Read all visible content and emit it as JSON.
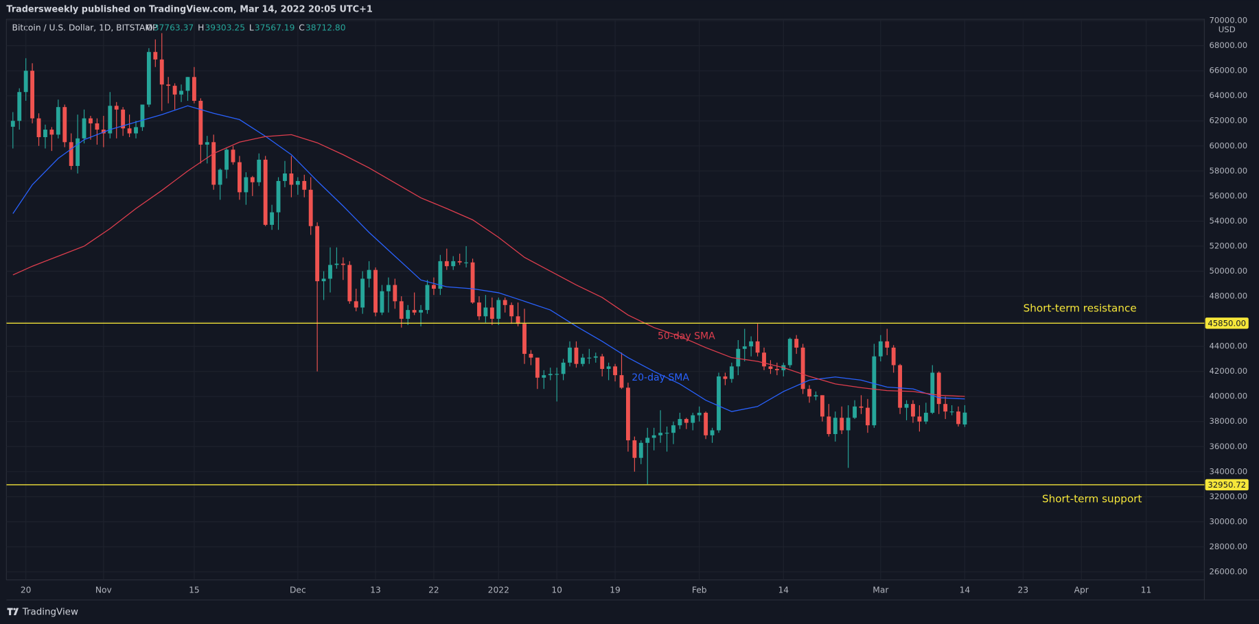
{
  "chart_data": {
    "type": "candlestick",
    "header": "Tradersweekly published on TradingView.com, Mar 14, 2022 20:05 UTC+1",
    "symbol": "Bitcoin / U.S. Dollar, 1D, BITSTAMP",
    "ohlc_legend": [
      {
        "label": "O",
        "value": "37763.37"
      },
      {
        "label": "H",
        "value": "39303.25"
      },
      {
        "label": "L",
        "value": "37567.19"
      },
      {
        "label": "C",
        "value": "38712.80"
      }
    ],
    "currency": "USD",
    "footer": "TradingView",
    "up_color": "#26a69a",
    "down_color": "#ef5350",
    "grid": true,
    "xlim": [
      "2021-10-17",
      "2022-04-20"
    ],
    "ylim": [
      25360,
      70110
    ],
    "xticks": [
      {
        "value": "2021-10-20",
        "label": "20"
      },
      {
        "value": "2021-11-01",
        "label": "Nov"
      },
      {
        "value": "2021-11-15",
        "label": "15"
      },
      {
        "value": "2021-12-01",
        "label": "Dec"
      },
      {
        "value": "2021-12-13",
        "label": "13"
      },
      {
        "value": "2021-12-22",
        "label": "22"
      },
      {
        "value": "2022-01-01",
        "label": "2022"
      },
      {
        "value": "2022-01-10",
        "label": "10"
      },
      {
        "value": "2022-01-19",
        "label": "19"
      },
      {
        "value": "2022-02-01",
        "label": "Feb"
      },
      {
        "value": "2022-02-14",
        "label": "14"
      },
      {
        "value": "2022-03-01",
        "label": "Mar"
      },
      {
        "value": "2022-03-14",
        "label": "14"
      },
      {
        "value": "2022-03-23",
        "label": "23"
      },
      {
        "value": "2022-04-01",
        "label": "Apr"
      },
      {
        "value": "2022-04-11",
        "label": "11"
      }
    ],
    "yticks": [
      {
        "value": 26000,
        "label": "26000.00"
      },
      {
        "value": 28000,
        "label": "28000.00"
      },
      {
        "value": 30000,
        "label": "30000.00"
      },
      {
        "value": 32000,
        "label": "32000.00"
      },
      {
        "value": 34000,
        "label": "34000.00"
      },
      {
        "value": 36000,
        "label": "36000.00"
      },
      {
        "value": 38000,
        "label": "38000.00"
      },
      {
        "value": 40000,
        "label": "40000.00"
      },
      {
        "value": 42000,
        "label": "42000.00"
      },
      {
        "value": 44000,
        "label": "44000.00"
      },
      {
        "value": 46000,
        "label": "46000.00"
      },
      {
        "value": 48000,
        "label": "48000.00"
      },
      {
        "value": 50000,
        "label": "50000.00"
      },
      {
        "value": 52000,
        "label": "52000.00"
      },
      {
        "value": 54000,
        "label": "54000.00"
      },
      {
        "value": 56000,
        "label": "56000.00"
      },
      {
        "value": 58000,
        "label": "58000.00"
      },
      {
        "value": 60000,
        "label": "60000.00"
      },
      {
        "value": 62000,
        "label": "62000.00"
      },
      {
        "value": 64000,
        "label": "64000.00"
      },
      {
        "value": 66000,
        "label": "66000.00"
      },
      {
        "value": 68000,
        "label": "68000.00"
      },
      {
        "value": 70000,
        "label": "70000.00"
      }
    ],
    "levels": [
      {
        "name": "Short-term resistance",
        "value": 45850,
        "label": "45850.00",
        "color": "#f5e63a"
      },
      {
        "name": "Short-term support",
        "value": 32950.72,
        "label": "32950.72",
        "color": "#f5e63a"
      }
    ],
    "x": [
      "2021-10-18",
      "2021-10-19",
      "2021-10-20",
      "2021-10-21",
      "2021-10-22",
      "2021-10-23",
      "2021-10-24",
      "2021-10-25",
      "2021-10-26",
      "2021-10-27",
      "2021-10-28",
      "2021-10-29",
      "2021-10-30",
      "2021-10-31",
      "2021-11-01",
      "2021-11-02",
      "2021-11-03",
      "2021-11-04",
      "2021-11-05",
      "2021-11-06",
      "2021-11-07",
      "2021-11-08",
      "2021-11-09",
      "2021-11-10",
      "2021-11-11",
      "2021-11-12",
      "2021-11-13",
      "2021-11-14",
      "2021-11-15",
      "2021-11-16",
      "2021-11-17",
      "2021-11-18",
      "2021-11-19",
      "2021-11-20",
      "2021-11-21",
      "2021-11-22",
      "2021-11-23",
      "2021-11-24",
      "2021-11-25",
      "2021-11-26",
      "2021-11-27",
      "2021-11-28",
      "2021-11-29",
      "2021-11-30",
      "2021-12-01",
      "2021-12-02",
      "2021-12-03",
      "2021-12-04",
      "2021-12-05",
      "2021-12-06",
      "2021-12-07",
      "2021-12-08",
      "2021-12-09",
      "2021-12-10",
      "2021-12-11",
      "2021-12-12",
      "2021-12-13",
      "2021-12-14",
      "2021-12-15",
      "2021-12-16",
      "2021-12-17",
      "2021-12-18",
      "2021-12-19",
      "2021-12-20",
      "2021-12-21",
      "2021-12-22",
      "2021-12-23",
      "2021-12-24",
      "2021-12-25",
      "2021-12-26",
      "2021-12-27",
      "2021-12-28",
      "2021-12-29",
      "2021-12-30",
      "2021-12-31",
      "2022-01-01",
      "2022-01-02",
      "2022-01-03",
      "2022-01-04",
      "2022-01-05",
      "2022-01-06",
      "2022-01-07",
      "2022-01-08",
      "2022-01-09",
      "2022-01-10",
      "2022-01-11",
      "2022-01-12",
      "2022-01-13",
      "2022-01-14",
      "2022-01-15",
      "2022-01-16",
      "2022-01-17",
      "2022-01-18",
      "2022-01-19",
      "2022-01-20",
      "2022-01-21",
      "2022-01-22",
      "2022-01-23",
      "2022-01-24",
      "2022-01-25",
      "2022-01-26",
      "2022-01-27",
      "2022-01-28",
      "2022-01-29",
      "2022-01-30",
      "2022-01-31",
      "2022-02-01",
      "2022-02-02",
      "2022-02-03",
      "2022-02-04",
      "2022-02-05",
      "2022-02-06",
      "2022-02-07",
      "2022-02-08",
      "2022-02-09",
      "2022-02-10",
      "2022-02-11",
      "2022-02-12",
      "2022-02-13",
      "2022-02-14",
      "2022-02-15",
      "2022-02-16",
      "2022-02-17",
      "2022-02-18",
      "2022-02-19",
      "2022-02-20",
      "2022-02-21",
      "2022-02-22",
      "2022-02-23",
      "2022-02-24",
      "2022-02-25",
      "2022-02-26",
      "2022-02-27",
      "2022-02-28",
      "2022-03-01",
      "2022-03-02",
      "2022-03-03",
      "2022-03-04",
      "2022-03-05",
      "2022-03-06",
      "2022-03-07",
      "2022-03-08",
      "2022-03-09",
      "2022-03-10",
      "2022-03-11",
      "2022-03-12",
      "2022-03-13",
      "2022-03-14"
    ],
    "open": [
      61530,
      62000,
      64300,
      66000,
      62200,
      60700,
      61300,
      60900,
      63100,
      60300,
      58400,
      60600,
      62200,
      61800,
      61300,
      61000,
      63200,
      62900,
      61400,
      61000,
      61500,
      63300,
      67500,
      66900,
      64900,
      64800,
      64100,
      64400,
      65500,
      63600,
      60100,
      60300,
      56900,
      58100,
      59700,
      58700,
      56300,
      57500,
      57100,
      58900,
      53700,
      54700,
      57200,
      57800,
      56900,
      57200,
      56500,
      53600,
      49200,
      49400,
      50500,
      50600,
      50500,
      47600,
      47100,
      49400,
      50100,
      46700,
      48400,
      48900,
      47600,
      46200,
      46900,
      46700,
      46900,
      48900,
      48600,
      50800,
      50400,
      50800,
      50700,
      50700,
      47500,
      46400,
      47100,
      46200,
      47700,
      47300,
      46400,
      45800,
      43400,
      43100,
      41500,
      41700,
      41800,
      41800,
      42700,
      43900,
      42600,
      43100,
      43100,
      43200,
      42200,
      42400,
      41700,
      40700,
      36500,
      35100,
      36300,
      36700,
      36900,
      37100,
      37100,
      37700,
      38200,
      37900,
      38500,
      38700,
      36900,
      37300,
      41600,
      41400,
      42400,
      43800,
      44000,
      44400,
      43500,
      42400,
      42200,
      42100,
      42500,
      44600,
      43900,
      40600,
      40000,
      40100,
      38400,
      37000,
      38300,
      37300,
      38300,
      39200,
      39100,
      37700,
      43200,
      44400,
      43900,
      42500,
      39100,
      39400,
      38400,
      38000,
      38700,
      41900,
      39400,
      38800,
      38800,
      37763.37
    ],
    "high": [
      62700,
      64600,
      67000,
      66600,
      62600,
      61700,
      61500,
      63700,
      63300,
      61000,
      62500,
      62900,
      62400,
      62200,
      62400,
      64300,
      63500,
      63100,
      62500,
      62000,
      63300,
      67800,
      68500,
      69000,
      65500,
      65000,
      64900,
      65500,
      66300,
      63800,
      60800,
      60900,
      58200,
      59800,
      60000,
      59200,
      57900,
      57600,
      59400,
      59200,
      55300,
      57500,
      58800,
      59200,
      57500,
      57700,
      57500,
      53900,
      50000,
      51900,
      51900,
      51100,
      50800,
      48600,
      50000,
      50800,
      50300,
      48900,
      49500,
      49400,
      48000,
      47300,
      48300,
      47300,
      49300,
      49500,
      51300,
      51800,
      51200,
      51400,
      52000,
      51000,
      48000,
      48100,
      47900,
      47900,
      47900,
      47500,
      47500,
      47000,
      43700,
      43100,
      42100,
      42300,
      42300,
      43000,
      44400,
      44400,
      43400,
      43800,
      43500,
      43400,
      42700,
      42600,
      43500,
      41100,
      36800,
      36500,
      37500,
      37500,
      38900,
      37600,
      38000,
      38700,
      38300,
      38700,
      39200,
      38800,
      37500,
      41900,
      41900,
      42700,
      44500,
      45400,
      44800,
      45800,
      43900,
      42900,
      42700,
      42700,
      44700,
      44900,
      44200,
      40900,
      40400,
      40100,
      39400,
      38800,
      39200,
      39300,
      39700,
      40100,
      39800,
      44200,
      44900,
      45400,
      44100,
      42600,
      39700,
      39700,
      39300,
      39500,
      42500,
      42000,
      40000,
      39300,
      39200,
      39303.25
    ],
    "low": [
      59800,
      61300,
      63600,
      61800,
      60000,
      59800,
      59600,
      60600,
      59900,
      58100,
      57800,
      60200,
      60500,
      60100,
      59900,
      60600,
      60600,
      60800,
      60700,
      60600,
      61200,
      63100,
      66300,
      62800,
      63400,
      62900,
      63500,
      63600,
      63400,
      58600,
      58600,
      56500,
      55700,
      57400,
      58500,
      55700,
      55300,
      56000,
      56800,
      53600,
      53300,
      53300,
      56700,
      55900,
      56100,
      55900,
      52900,
      42000,
      47700,
      48300,
      50200,
      49300,
      47400,
      46800,
      46600,
      48700,
      46400,
      46500,
      46700,
      47000,
      45500,
      45700,
      46500,
      45600,
      46600,
      48100,
      48100,
      50100,
      50100,
      50500,
      50300,
      47400,
      46100,
      45900,
      45700,
      45700,
      46700,
      45800,
      45600,
      42600,
      42500,
      40600,
      40600,
      41300,
      39600,
      41300,
      42400,
      42300,
      42400,
      42600,
      42700,
      41600,
      41300,
      41200,
      40600,
      35600,
      34000,
      34600,
      33000,
      35700,
      36300,
      35600,
      36200,
      37400,
      37400,
      37300,
      38000,
      36600,
      36300,
      37100,
      40900,
      41100,
      41700,
      42800,
      43200,
      43200,
      42100,
      41800,
      41700,
      41600,
      42300,
      43400,
      40200,
      39500,
      39700,
      38000,
      36800,
      36400,
      37000,
      34300,
      38200,
      38600,
      37100,
      37500,
      42800,
      43300,
      41900,
      38600,
      38100,
      37900,
      37200,
      37800,
      38600,
      38600,
      38200,
      38500,
      37600,
      37567.19
    ],
    "close": [
      62000,
      64300,
      66000,
      62200,
      60700,
      61300,
      60900,
      63100,
      60300,
      58400,
      60600,
      62200,
      61800,
      61300,
      61000,
      63200,
      62900,
      61400,
      61000,
      61500,
      63300,
      67500,
      66900,
      64900,
      64800,
      64100,
      64400,
      65500,
      63600,
      60100,
      60300,
      56900,
      58100,
      59700,
      58700,
      56300,
      57500,
      57100,
      58900,
      53700,
      54700,
      57200,
      57800,
      56900,
      57200,
      56500,
      53600,
      49200,
      49400,
      50500,
      50600,
      50500,
      47600,
      47100,
      49400,
      50100,
      46700,
      48400,
      48900,
      47600,
      46200,
      46900,
      46700,
      46900,
      48900,
      48600,
      50800,
      50400,
      50800,
      50700,
      50700,
      47500,
      46400,
      47100,
      46200,
      47700,
      47300,
      46400,
      45800,
      43400,
      43100,
      41500,
      41700,
      41800,
      41800,
      42700,
      43900,
      42600,
      43100,
      43100,
      43200,
      42200,
      42400,
      41700,
      40700,
      36500,
      35100,
      36300,
      36700,
      36900,
      37100,
      37100,
      37700,
      38200,
      37900,
      38500,
      38700,
      36900,
      37300,
      41600,
      41400,
      42400,
      43800,
      44000,
      44400,
      43500,
      42400,
      42200,
      42100,
      42500,
      44600,
      43900,
      40600,
      40000,
      40100,
      38400,
      37000,
      38300,
      37300,
      38300,
      39200,
      39100,
      37700,
      43200,
      44400,
      43900,
      42500,
      39100,
      39400,
      38400,
      38000,
      38700,
      41900,
      39400,
      38800,
      38800,
      37800,
      38712.8
    ],
    "series": [
      {
        "name": "20-day SMA",
        "color": "#2962ff",
        "x": [
          "2021-10-18",
          "2021-10-21",
          "2021-10-25",
          "2021-10-29",
          "2021-11-02",
          "2021-11-06",
          "2021-11-10",
          "2021-11-14",
          "2021-11-18",
          "2021-11-22",
          "2021-11-26",
          "2021-11-30",
          "2021-12-04",
          "2021-12-08",
          "2021-12-12",
          "2021-12-16",
          "2021-12-20",
          "2021-12-24",
          "2021-12-28",
          "2022-01-01",
          "2022-01-05",
          "2022-01-09",
          "2022-01-13",
          "2022-01-17",
          "2022-01-21",
          "2022-01-25",
          "2022-01-29",
          "2022-02-02",
          "2022-02-06",
          "2022-02-10",
          "2022-02-14",
          "2022-02-18",
          "2022-02-22",
          "2022-02-26",
          "2022-03-02",
          "2022-03-06",
          "2022-03-10",
          "2022-03-14"
        ],
        "values": [
          54600,
          56900,
          59000,
          60500,
          61300,
          61900,
          62500,
          63200,
          62600,
          62100,
          60770,
          59300,
          57200,
          55200,
          53100,
          51200,
          49300,
          48750,
          48600,
          48280,
          47600,
          46900,
          45600,
          44400,
          43100,
          42000,
          41000,
          39700,
          38800,
          39200,
          40400,
          41300,
          41560,
          41300,
          40750,
          40600,
          39900,
          39800
        ],
        "label_at": "2022-01-26",
        "label_value": 41500
      },
      {
        "name": "50-day SMA",
        "color": "#e03e4e",
        "x": [
          "2021-10-18",
          "2021-10-21",
          "2021-10-25",
          "2021-10-29",
          "2021-11-02",
          "2021-11-06",
          "2021-11-10",
          "2021-11-14",
          "2021-11-18",
          "2021-11-22",
          "2021-11-26",
          "2021-11-30",
          "2021-12-04",
          "2021-12-08",
          "2021-12-12",
          "2021-12-16",
          "2021-12-20",
          "2021-12-24",
          "2021-12-28",
          "2022-01-01",
          "2022-01-05",
          "2022-01-09",
          "2022-01-13",
          "2022-01-17",
          "2022-01-21",
          "2022-01-25",
          "2022-01-29",
          "2022-02-02",
          "2022-02-06",
          "2022-02-10",
          "2022-02-14",
          "2022-02-18",
          "2022-02-22",
          "2022-02-26",
          "2022-03-02",
          "2022-03-06",
          "2022-03-10",
          "2022-03-14"
        ],
        "values": [
          49700,
          50400,
          51200,
          52000,
          53400,
          55000,
          56450,
          58000,
          59400,
          60300,
          60750,
          60900,
          60250,
          59300,
          58250,
          57050,
          55850,
          55000,
          54100,
          52700,
          51100,
          50000,
          48900,
          47900,
          46500,
          45500,
          44800,
          43900,
          43100,
          42800,
          42300,
          41600,
          41000,
          40700,
          40470,
          40400,
          40100,
          40000
        ],
        "label_at": "2022-01-30",
        "label_value": 44800
      }
    ]
  }
}
